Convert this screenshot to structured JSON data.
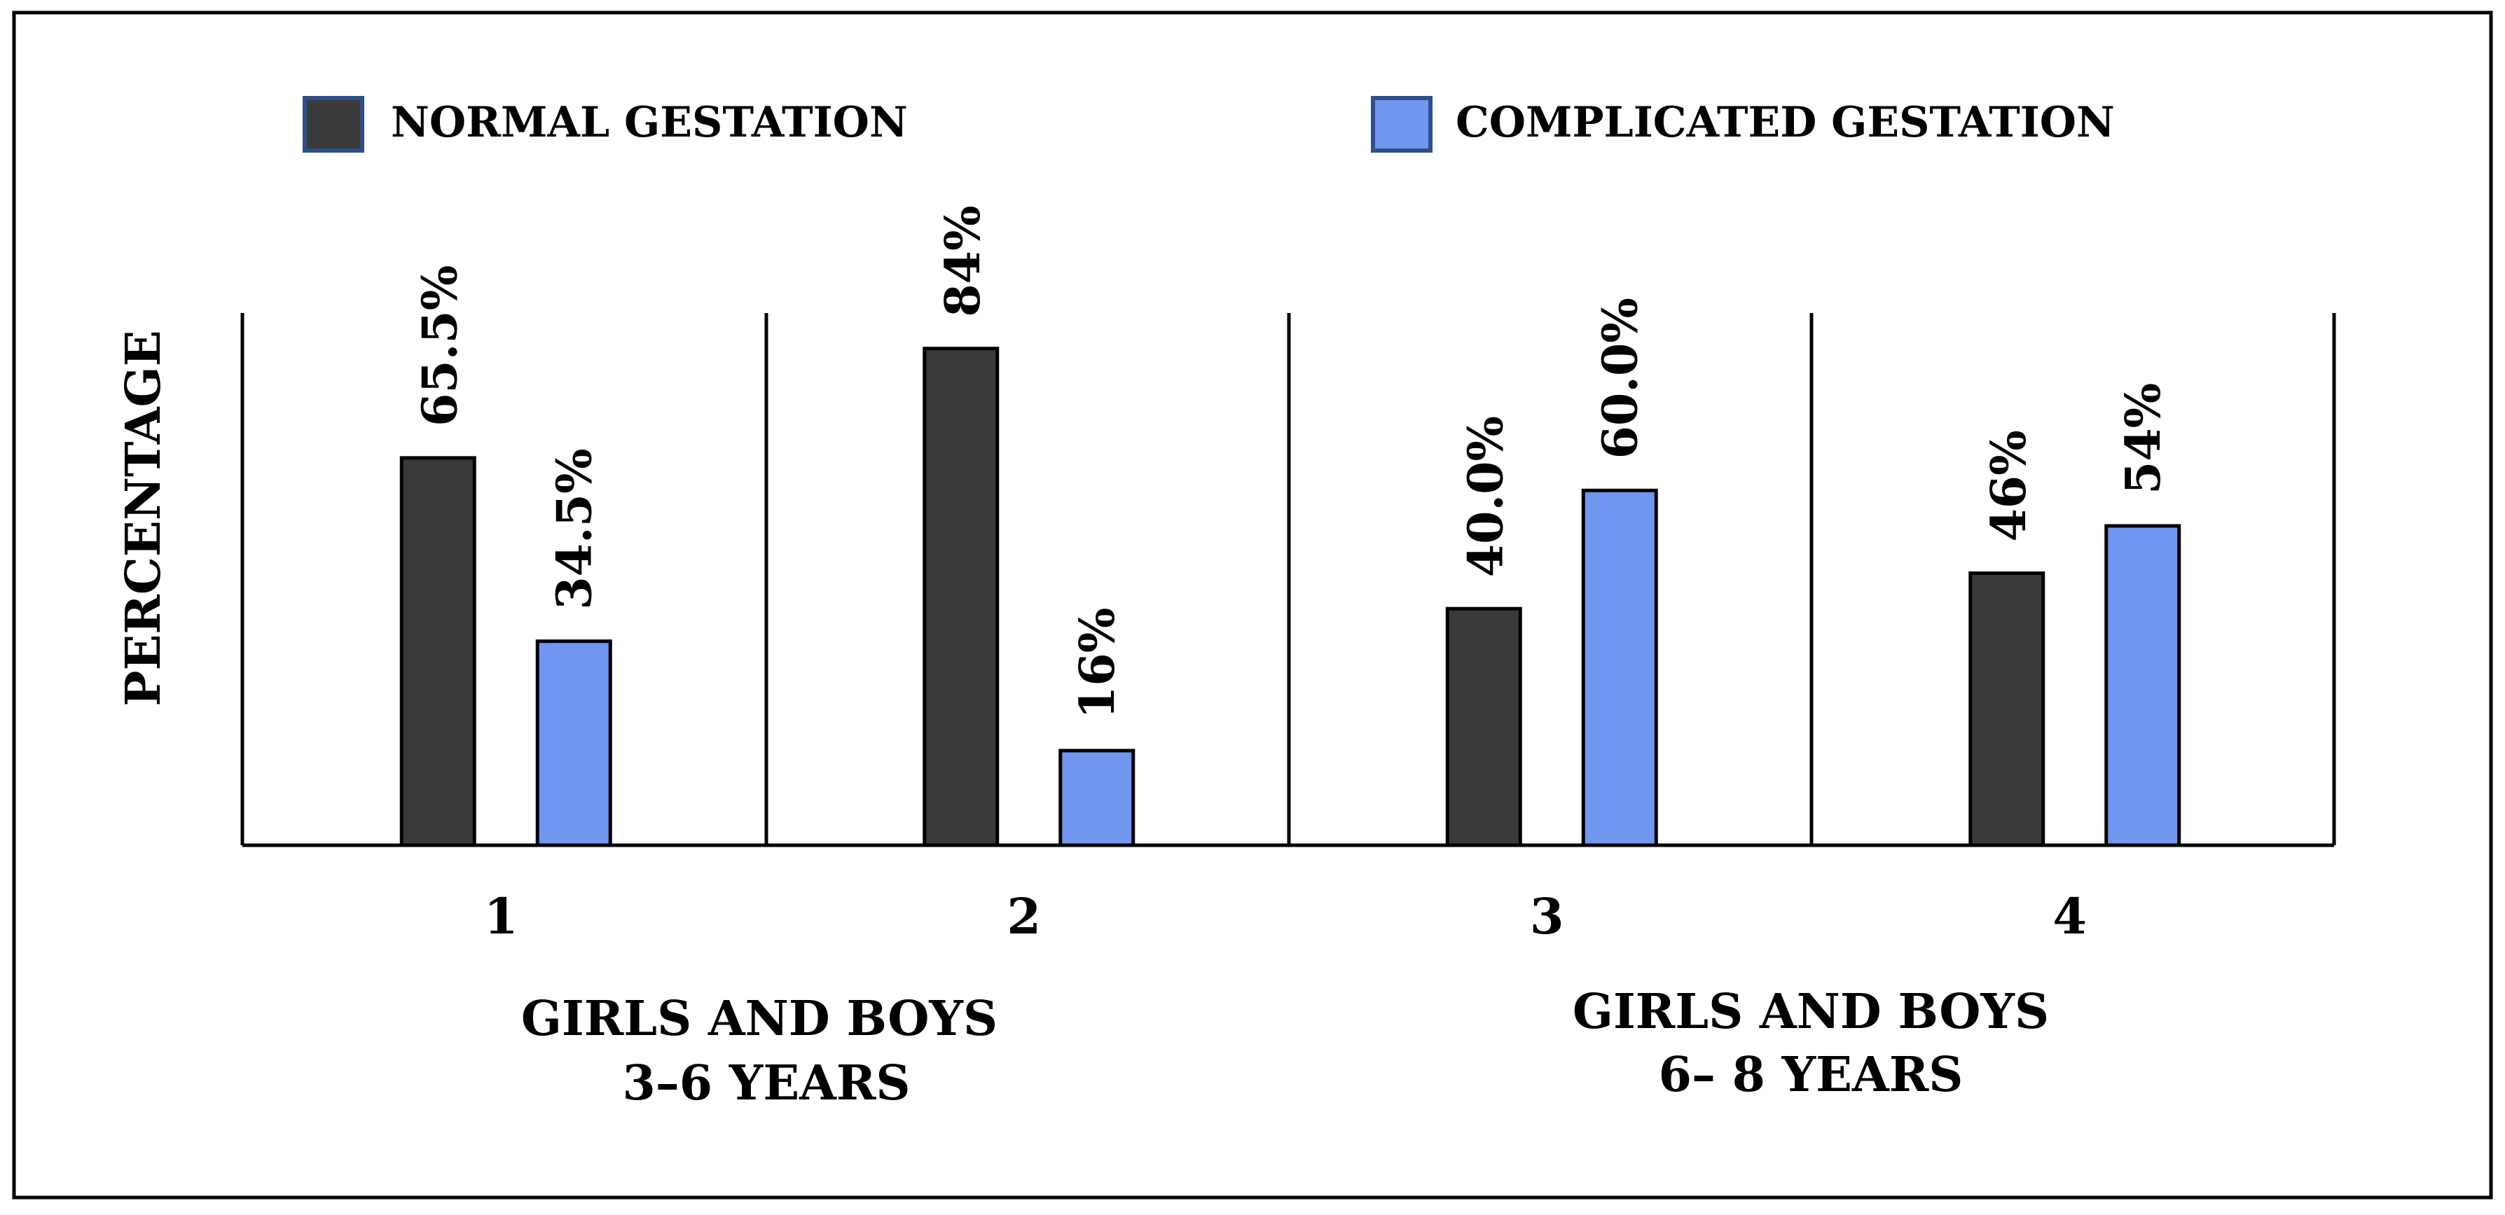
{
  "chart_data": {
    "type": "bar",
    "title": "",
    "xlabel": "",
    "ylabel": "PERCENTAGE",
    "ylim": [
      0,
      90
    ],
    "grid": false,
    "legend_position": "top",
    "categories": [
      "1",
      "2",
      "3",
      "4"
    ],
    "group_labels": [
      {
        "line1": "GIRLS AND BOYS",
        "line2": "3–6 YEARS",
        "spans": [
          "1",
          "2"
        ]
      },
      {
        "line1": "GIRLS AND BOYS",
        "line2": "6– 8 YEARS",
        "spans": [
          "3",
          "4"
        ]
      }
    ],
    "series": [
      {
        "name": "NORMAL GESTATION",
        "color": "#3a3a3a",
        "values": [
          65.5,
          84,
          40.0,
          46
        ],
        "labels": [
          "65.5%",
          "84%",
          "40.0%",
          "46%"
        ]
      },
      {
        "name": "COMPLICATED GESTATION",
        "color": "#7096f0",
        "values": [
          34.5,
          16,
          60.0,
          54
        ],
        "labels": [
          "34.5%",
          "16%",
          "60.0%",
          "54%"
        ]
      }
    ]
  }
}
